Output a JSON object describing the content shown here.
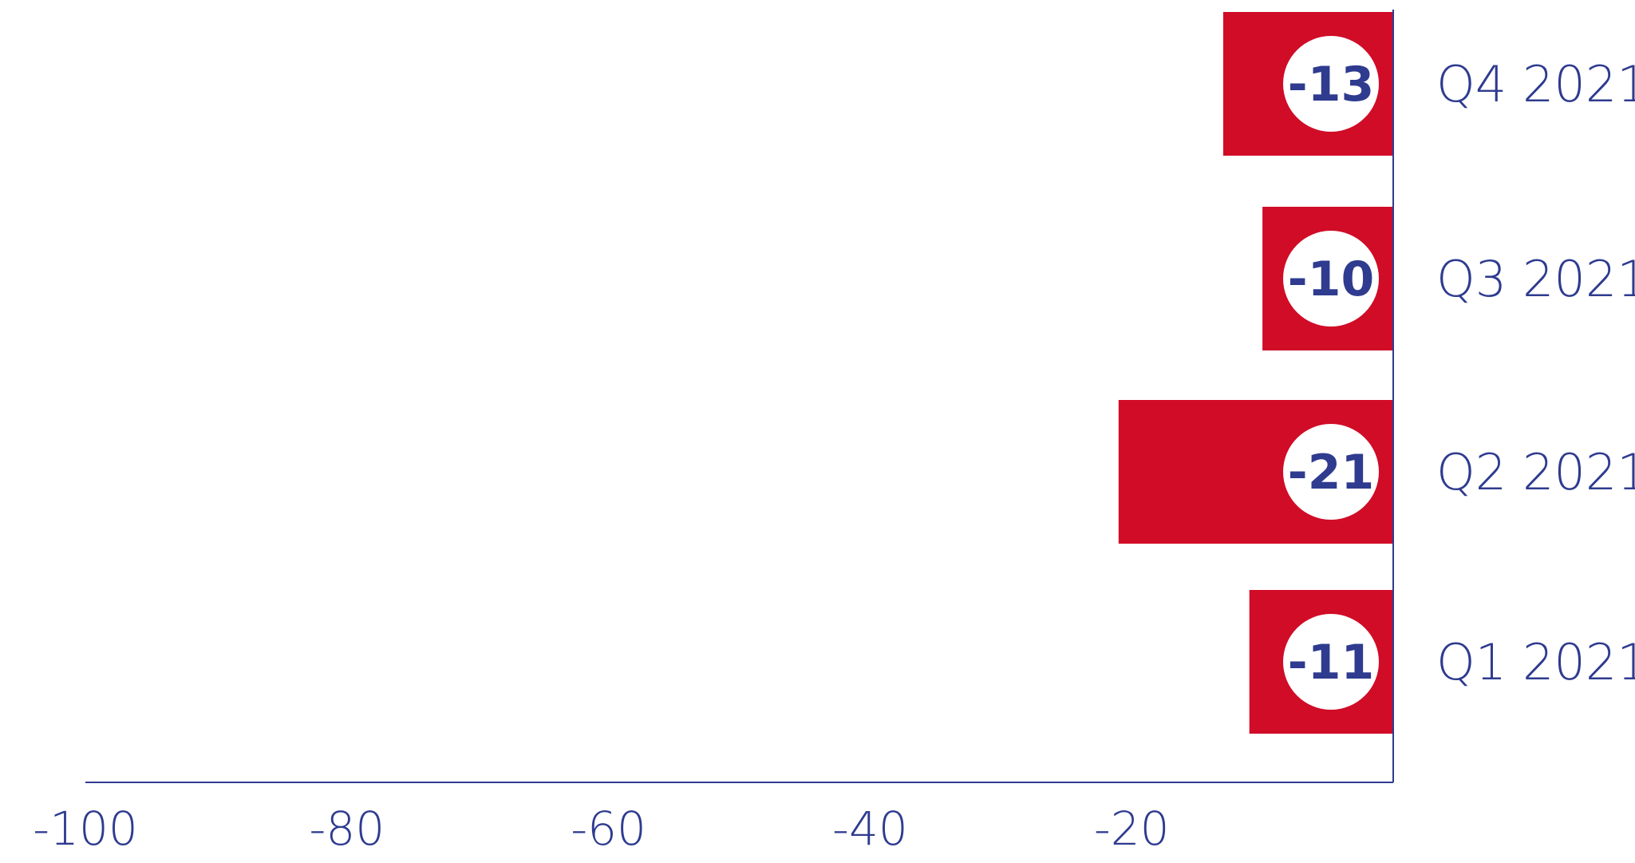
{
  "chart_data": {
    "type": "bar",
    "orientation": "horizontal",
    "categories": [
      "Q4 2021",
      "Q3 2021",
      "Q2 2021",
      "Q1 2021"
    ],
    "values": [
      -13,
      -10,
      -21,
      -11
    ],
    "data_labels": [
      "-13",
      "-10",
      "-21",
      "-11"
    ],
    "xlim": [
      -100,
      0
    ],
    "x_ticks": [
      -100,
      -80,
      -60,
      -40,
      -20
    ],
    "x_tick_labels": [
      "-100",
      "-80",
      "-60",
      "-40",
      "-20"
    ],
    "title": "",
    "xlabel": "",
    "ylabel": "",
    "grid": false,
    "legend": "none",
    "colors": {
      "bar": "#d00c27",
      "axis": "#2e3b8f",
      "text": "#2e3b8f",
      "label_badge": "#ffffff"
    }
  }
}
